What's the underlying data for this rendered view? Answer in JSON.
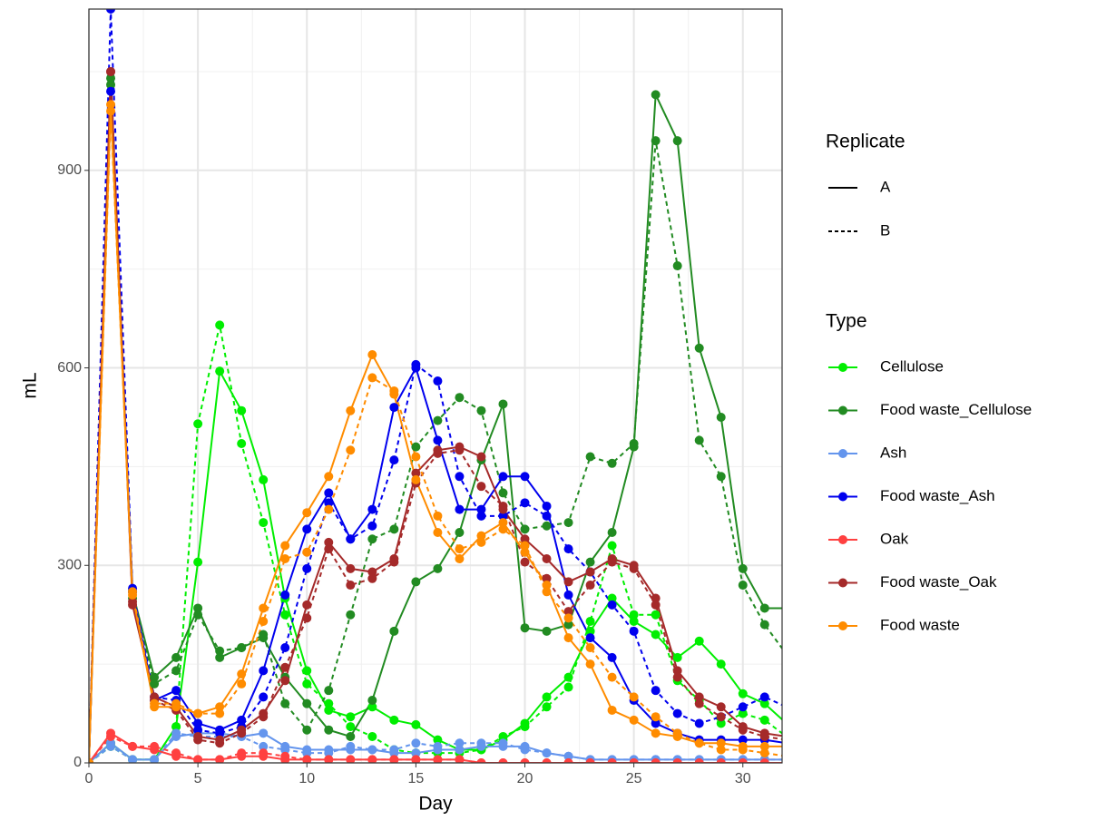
{
  "chart_data": {
    "type": "line",
    "x_label": "Day",
    "y_label": "mL",
    "x": [
      0,
      1,
      2,
      3,
      4,
      5,
      6,
      7,
      8,
      9,
      10,
      11,
      12,
      13,
      14,
      15,
      16,
      17,
      18,
      19,
      20,
      21,
      22,
      23,
      24,
      25,
      26,
      27,
      28,
      29,
      30,
      31,
      32
    ],
    "xlim": [
      0,
      31.8
    ],
    "xticks": [
      0,
      5,
      10,
      15,
      20,
      25,
      30
    ],
    "xminorticks": [
      2.5,
      7.5,
      12.5,
      17.5,
      22.5,
      27.5
    ],
    "ylim": [
      0,
      1145
    ],
    "yticks": [
      0,
      300,
      600,
      900
    ],
    "yminorticks": [
      150,
      450,
      750,
      1050
    ],
    "grid": true,
    "legend": {
      "replicate_title": "Replicate",
      "replicates": [
        {
          "name": "A",
          "dash": "solid"
        },
        {
          "name": "B",
          "dash": "dashed"
        }
      ],
      "type_title": "Type",
      "types": [
        {
          "name": "Cellulose",
          "color": "#00ee00"
        },
        {
          "name": "Food waste_Cellulose",
          "color": "#228b22"
        },
        {
          "name": "Ash",
          "color": "#6495ed"
        },
        {
          "name": "Food waste_Ash",
          "color": "#0000ee"
        },
        {
          "name": "Oak",
          "color": "#ff4040"
        },
        {
          "name": "Food waste_Oak",
          "color": "#a52a2a"
        },
        {
          "name": "Food waste",
          "color": "#ff8c00"
        }
      ]
    },
    "series": [
      {
        "group": "Cellulose",
        "replicate": "A",
        "values": [
          0,
          30,
          5,
          5,
          55,
          305,
          595,
          535,
          430,
          250,
          140,
          80,
          70,
          85,
          65,
          58,
          35,
          20,
          20,
          35,
          60,
          100,
          130,
          200,
          250,
          215,
          195,
          160,
          185,
          150,
          105,
          90,
          60
        ]
      },
      {
        "group": "Cellulose",
        "replicate": "B",
        "values": [
          0,
          25,
          5,
          5,
          55,
          515,
          665,
          485,
          365,
          225,
          120,
          90,
          55,
          40,
          20,
          15,
          15,
          15,
          20,
          40,
          55,
          85,
          115,
          215,
          330,
          225,
          225,
          125,
          95,
          60,
          75,
          65,
          40
        ]
      },
      {
        "group": "Food waste_Cellulose",
        "replicate": "A",
        "values": [
          0,
          1030,
          260,
          130,
          160,
          235,
          160,
          175,
          190,
          130,
          90,
          50,
          40,
          95,
          200,
          275,
          295,
          350,
          460,
          545,
          205,
          200,
          210,
          305,
          350,
          480,
          1015,
          945,
          630,
          525,
          295,
          235,
          235
        ]
      },
      {
        "group": "Food waste_Cellulose",
        "replicate": "B",
        "values": [
          0,
          1040,
          250,
          120,
          140,
          225,
          170,
          175,
          195,
          90,
          50,
          110,
          225,
          340,
          355,
          480,
          520,
          555,
          535,
          410,
          355,
          360,
          365,
          465,
          455,
          485,
          945,
          755,
          490,
          435,
          270,
          210,
          165
        ]
      },
      {
        "group": "Ash",
        "replicate": "A",
        "values": [
          0,
          30,
          5,
          5,
          40,
          45,
          45,
          40,
          45,
          25,
          20,
          20,
          20,
          20,
          15,
          15,
          20,
          20,
          25,
          25,
          25,
          15,
          10,
          5,
          5,
          5,
          5,
          5,
          5,
          5,
          5,
          5,
          5
        ]
      },
      {
        "group": "Ash",
        "replicate": "B",
        "values": [
          0,
          25,
          5,
          5,
          45,
          40,
          40,
          40,
          25,
          20,
          15,
          15,
          25,
          20,
          20,
          30,
          25,
          30,
          30,
          30,
          20,
          15,
          10,
          5,
          5,
          5,
          5,
          5,
          5,
          5,
          5,
          5,
          5
        ]
      },
      {
        "group": "Food waste_Ash",
        "replicate": "A",
        "values": [
          0,
          1020,
          260,
          95,
          110,
          60,
          50,
          65,
          140,
          255,
          355,
          410,
          340,
          385,
          540,
          600,
          490,
          385,
          385,
          435,
          435,
          390,
          255,
          190,
          160,
          95,
          60,
          45,
          35,
          35,
          35,
          35,
          30
        ]
      },
      {
        "group": "Food waste_Ash",
        "replicate": "B",
        "values": [
          0,
          1145,
          265,
          100,
          95,
          50,
          45,
          55,
          100,
          175,
          295,
          395,
          340,
          360,
          460,
          605,
          580,
          435,
          375,
          375,
          395,
          375,
          325,
          290,
          240,
          200,
          110,
          75,
          60,
          70,
          85,
          100,
          85
        ]
      },
      {
        "group": "Oak",
        "replicate": "A",
        "values": [
          0,
          45,
          25,
          20,
          10,
          5,
          5,
          10,
          10,
          5,
          5,
          5,
          5,
          5,
          5,
          5,
          5,
          5,
          0,
          0,
          0,
          0,
          0,
          0,
          0,
          0,
          0,
          0,
          0,
          0,
          0,
          0,
          0
        ]
      },
      {
        "group": "Oak",
        "replicate": "B",
        "values": [
          0,
          40,
          25,
          25,
          15,
          5,
          5,
          15,
          15,
          10,
          5,
          5,
          5,
          5,
          5,
          5,
          5,
          5,
          0,
          0,
          0,
          0,
          0,
          0,
          0,
          0,
          0,
          0,
          0,
          0,
          0,
          0,
          0
        ]
      },
      {
        "group": "Food waste_Oak",
        "replicate": "A",
        "values": [
          0,
          1050,
          240,
          100,
          85,
          40,
          35,
          50,
          75,
          125,
          240,
          335,
          295,
          290,
          310,
          440,
          475,
          480,
          465,
          385,
          340,
          310,
          275,
          290,
          310,
          300,
          250,
          140,
          100,
          85,
          55,
          45,
          40
        ]
      },
      {
        "group": "Food waste_Oak",
        "replicate": "B",
        "values": [
          0,
          1050,
          245,
          95,
          80,
          35,
          30,
          45,
          70,
          145,
          220,
          325,
          270,
          280,
          305,
          425,
          470,
          475,
          420,
          390,
          305,
          280,
          230,
          270,
          305,
          295,
          240,
          130,
          90,
          70,
          50,
          40,
          35
        ]
      },
      {
        "group": "Food waste",
        "replicate": "A",
        "values": [
          0,
          1000,
          255,
          85,
          85,
          75,
          85,
          135,
          235,
          330,
          380,
          435,
          535,
          620,
          560,
          430,
          350,
          310,
          345,
          365,
          320,
          270,
          190,
          150,
          80,
          65,
          45,
          40,
          30,
          30,
          25,
          25,
          25
        ]
      },
      {
        "group": "Food waste",
        "replicate": "B",
        "values": [
          0,
          990,
          260,
          90,
          90,
          75,
          75,
          120,
          215,
          310,
          320,
          385,
          475,
          585,
          565,
          465,
          375,
          325,
          335,
          355,
          330,
          260,
          220,
          175,
          130,
          100,
          70,
          45,
          30,
          20,
          20,
          15,
          10
        ]
      }
    ]
  }
}
